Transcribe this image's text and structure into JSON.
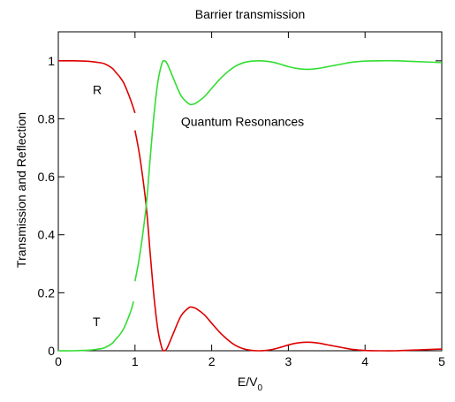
{
  "chart_data": {
    "type": "line",
    "title": "Barrier transmission",
    "xlabel": "E/V",
    "xlabel_sub": "0",
    "ylabel": "Transmission and Reflection",
    "xlim": [
      0,
      5
    ],
    "ylim": [
      0,
      1.1
    ],
    "xticks": [
      0,
      1,
      2,
      3,
      4,
      5
    ],
    "yticks": [
      0,
      0.2,
      0.4,
      0.6,
      0.8,
      1
    ],
    "xtick_labels": [
      "0",
      "1",
      "2",
      "3",
      "4",
      "5"
    ],
    "ytick_labels": [
      "0",
      "0.2",
      "0.4",
      "0.6",
      "0.8",
      "1"
    ],
    "grid": false,
    "annotations": [
      {
        "text": "R",
        "x": 0.45,
        "y": 0.9
      },
      {
        "text": "T",
        "x": 0.45,
        "y": 0.1
      },
      {
        "text": "Quantum Resonances",
        "x": 1.6,
        "y": 0.79
      }
    ],
    "series": [
      {
        "color": "#dd0000",
        "segments": [
          {
            "x": [
              0,
              0.2,
              0.4,
              0.5,
              0.6,
              0.7,
              0.75,
              0.8,
              0.85,
              0.9,
              0.95,
              1.0
            ],
            "y": [
              1.0,
              1.0,
              0.998,
              0.995,
              0.99,
              0.975,
              0.96,
              0.945,
              0.925,
              0.895,
              0.86,
              0.82
            ]
          },
          {
            "x": [
              1.0,
              1.05,
              1.1,
              1.15,
              1.2,
              1.25,
              1.3,
              1.35,
              1.38,
              1.42,
              1.5,
              1.6,
              1.7,
              1.75,
              1.8,
              1.9,
              2.0,
              2.1,
              2.2,
              2.3,
              2.4,
              2.5,
              2.6,
              2.7,
              2.8,
              2.9,
              3.0,
              3.1,
              3.2,
              3.3,
              3.4,
              3.5,
              3.6,
              3.7,
              3.8,
              3.9,
              4.0,
              4.2,
              4.4,
              4.6,
              4.8,
              5.0
            ],
            "y": [
              0.76,
              0.69,
              0.6,
              0.49,
              0.33,
              0.18,
              0.07,
              0.01,
              0.0,
              0.01,
              0.06,
              0.12,
              0.148,
              0.15,
              0.145,
              0.125,
              0.095,
              0.065,
              0.04,
              0.02,
              0.008,
              0.002,
              0.0,
              0.001,
              0.005,
              0.012,
              0.02,
              0.026,
              0.029,
              0.029,
              0.026,
              0.021,
              0.016,
              0.011,
              0.006,
              0.003,
              0.001,
              0.0,
              0.0,
              0.002,
              0.004,
              0.006
            ]
          }
        ]
      },
      {
        "color": "#33dd33",
        "segments": [
          {
            "x": [
              0,
              0.2,
              0.4,
              0.5,
              0.6,
              0.7,
              0.75,
              0.8,
              0.85,
              0.9,
              0.95,
              0.98
            ],
            "y": [
              0.0,
              0.0,
              0.002,
              0.005,
              0.01,
              0.025,
              0.04,
              0.055,
              0.075,
              0.105,
              0.14,
              0.17
            ]
          },
          {
            "x": [
              1.0,
              1.05,
              1.1,
              1.15,
              1.2,
              1.25,
              1.3,
              1.35,
              1.38,
              1.42,
              1.5,
              1.6,
              1.7,
              1.75,
              1.8,
              1.9,
              2.0,
              2.1,
              2.2,
              2.3,
              2.4,
              2.5,
              2.6,
              2.7,
              2.8,
              2.9,
              3.0,
              3.1,
              3.2,
              3.3,
              3.4,
              3.5,
              3.6,
              3.7,
              3.8,
              3.9,
              4.0,
              4.2,
              4.4,
              4.6,
              4.8,
              5.0
            ],
            "y": [
              0.24,
              0.31,
              0.4,
              0.51,
              0.67,
              0.82,
              0.93,
              0.99,
              1.0,
              0.99,
              0.94,
              0.88,
              0.852,
              0.85,
              0.855,
              0.875,
              0.905,
              0.935,
              0.96,
              0.98,
              0.992,
              0.998,
              1.0,
              0.999,
              0.995,
              0.988,
              0.98,
              0.974,
              0.971,
              0.971,
              0.974,
              0.979,
              0.984,
              0.989,
              0.994,
              0.997,
              0.999,
              1.0,
              1.0,
              0.998,
              0.996,
              0.994
            ]
          }
        ]
      }
    ]
  }
}
